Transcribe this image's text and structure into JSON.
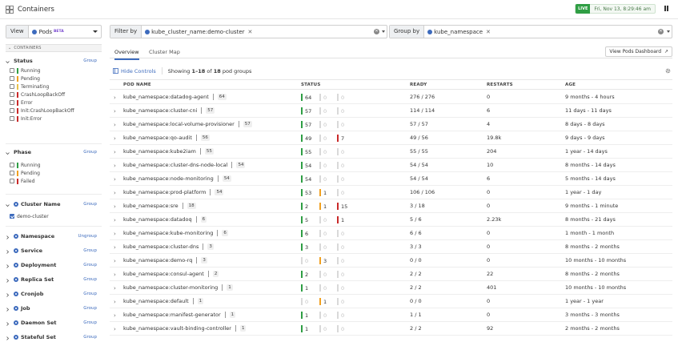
{
  "app": {
    "title": "Containers",
    "live_badge": "LIVE",
    "live_time": "Fri, Nov 13, 8:29:46 am"
  },
  "sidebar": {
    "view_label": "View",
    "view_value": "Pods",
    "view_beta": "BETA",
    "containers_header": "CONTAINERS",
    "facets": [
      {
        "title": "Status",
        "action": "Group",
        "expanded": true,
        "items": [
          {
            "label": "Running",
            "color": "#2f9e44",
            "checked": false
          },
          {
            "label": "Pending",
            "color": "#f0a020",
            "checked": false
          },
          {
            "label": "Terminating",
            "color": "#e8c24a",
            "checked": false
          },
          {
            "label": "CrashLoopBackOff",
            "color": "#c92a2a",
            "checked": false
          },
          {
            "label": "Error",
            "color": "#c92a2a",
            "checked": false
          },
          {
            "label": "Init:CrashLoopBackOff",
            "color": "#c92a2a",
            "checked": false
          },
          {
            "label": "Init:Error",
            "color": "#c92a2a",
            "checked": false
          }
        ]
      },
      {
        "title": "Phase",
        "action": "Group",
        "expanded": true,
        "items": [
          {
            "label": "Running",
            "color": "#2f9e44",
            "checked": false
          },
          {
            "label": "Pending",
            "color": "#f0a020",
            "checked": false
          },
          {
            "label": "Failed",
            "color": "#c92a2a",
            "checked": false
          }
        ]
      },
      {
        "title": "Cluster Name",
        "action": "Group",
        "expanded": true,
        "icon": "kubernetes-icon",
        "items": [
          {
            "label": "demo-cluster",
            "checked": true
          }
        ]
      },
      {
        "title": "Namespace",
        "action": "Ungroup",
        "expanded": false,
        "icon": "kubernetes-icon"
      },
      {
        "title": "Service",
        "action": "Group",
        "expanded": false,
        "icon": "kubernetes-icon"
      },
      {
        "title": "Deployment",
        "action": "Group",
        "expanded": false,
        "icon": "kubernetes-icon"
      },
      {
        "title": "Replica Set",
        "action": "Group",
        "expanded": false,
        "icon": "kubernetes-icon"
      },
      {
        "title": "Cronjob",
        "action": "Group",
        "expanded": false,
        "icon": "kubernetes-icon"
      },
      {
        "title": "Job",
        "action": "Group",
        "expanded": false,
        "icon": "kubernetes-icon"
      },
      {
        "title": "Daemon Set",
        "action": "Group",
        "expanded": false,
        "icon": "kubernetes-icon"
      },
      {
        "title": "Stateful Set",
        "action": "Group",
        "expanded": false,
        "icon": "kubernetes-icon"
      }
    ]
  },
  "filter": {
    "label": "Filter by",
    "chip": "kube_cluster_name:demo-cluster"
  },
  "group": {
    "label": "Group by",
    "chip": "kube_namespace"
  },
  "tabs": [
    {
      "label": "Overview",
      "active": true
    },
    {
      "label": "Cluster Map",
      "active": false
    }
  ],
  "dashboard_button": "View Pods Dashboard",
  "controls": {
    "hide_label": "Hide Controls",
    "showing_prefix": "Showing",
    "showing_range": "1–18",
    "showing_of": "of",
    "showing_total": "18",
    "showing_suffix": "pod groups"
  },
  "table": {
    "columns": [
      "POD NAME",
      "STATUS",
      "READY",
      "RESTARTS",
      "AGE"
    ],
    "status_colors": {
      "running": "#2f9e44",
      "pending": "#f0a020",
      "failed": "#c92a2a",
      "zero": "#d9d9d9"
    },
    "rows": [
      {
        "name": "kube_namespace:datadog-agent",
        "count": "64",
        "running": "64",
        "pending": "0",
        "failed": "0",
        "ready": "276 / 276",
        "restarts": "0",
        "age": "9 months - 4 hours"
      },
      {
        "name": "kube_namespace:cluster-cni",
        "count": "57",
        "running": "57",
        "pending": "0",
        "failed": "0",
        "ready": "114 / 114",
        "restarts": "6",
        "age": "11 days - 11 days"
      },
      {
        "name": "kube_namespace:local-volume-provisioner",
        "count": "57",
        "running": "57",
        "pending": "0",
        "failed": "0",
        "ready": "57 / 57",
        "restarts": "4",
        "age": "8 days - 8 days"
      },
      {
        "name": "kube_namespace:qo-audit",
        "count": "56",
        "running": "49",
        "pending": "0",
        "failed": "7",
        "ready": "49 / 56",
        "restarts": "19.8k",
        "age": "9 days - 9 days"
      },
      {
        "name": "kube_namespace:kube2iam",
        "count": "55",
        "running": "55",
        "pending": "0",
        "failed": "0",
        "ready": "55 / 55",
        "restarts": "204",
        "age": "1 year - 14 days"
      },
      {
        "name": "kube_namespace:cluster-dns-node-local",
        "count": "54",
        "running": "54",
        "pending": "0",
        "failed": "0",
        "ready": "54 / 54",
        "restarts": "10",
        "age": "8 months - 14 days"
      },
      {
        "name": "kube_namespace:node-monitoring",
        "count": "54",
        "running": "54",
        "pending": "0",
        "failed": "0",
        "ready": "54 / 54",
        "restarts": "6",
        "age": "5 months - 14 days"
      },
      {
        "name": "kube_namespace:prod-platform",
        "count": "54",
        "running": "53",
        "pending": "1",
        "failed": "0",
        "ready": "106 / 106",
        "restarts": "0",
        "age": "1 year - 1 day"
      },
      {
        "name": "kube_namespace:sre",
        "count": "18",
        "running": "2",
        "pending": "1",
        "failed": "15",
        "ready": "3 / 18",
        "restarts": "0",
        "age": "9 months - 1 minute"
      },
      {
        "name": "kube_namespace:datadoq",
        "count": "6",
        "running": "5",
        "pending": "0",
        "failed": "1",
        "ready": "5 / 6",
        "restarts": "2.23k",
        "age": "8 months - 21 days"
      },
      {
        "name": "kube_namespace:kube-monitoring",
        "count": "6",
        "running": "6",
        "pending": "0",
        "failed": "0",
        "ready": "6 / 6",
        "restarts": "0",
        "age": "1 month - 1 month"
      },
      {
        "name": "kube_namespace:cluster-dns",
        "count": "3",
        "running": "3",
        "pending": "0",
        "failed": "0",
        "ready": "3 / 3",
        "restarts": "0",
        "age": "8 months - 2 months"
      },
      {
        "name": "kube_namespace:demo-rq",
        "count": "3",
        "running": "0",
        "pending": "3",
        "failed": "0",
        "ready": "0 / 0",
        "restarts": "0",
        "age": "10 months - 10 months"
      },
      {
        "name": "kube_namespace:consul-agent",
        "count": "2",
        "running": "2",
        "pending": "0",
        "failed": "0",
        "ready": "2 / 2",
        "restarts": "22",
        "age": "8 months - 2 months"
      },
      {
        "name": "kube_namespace:cluster-monitoring",
        "count": "1",
        "running": "1",
        "pending": "0",
        "failed": "0",
        "ready": "2 / 2",
        "restarts": "401",
        "age": "10 months - 10 months"
      },
      {
        "name": "kube_namespace:default",
        "count": "1",
        "running": "0",
        "pending": "1",
        "failed": "0",
        "ready": "0 / 0",
        "restarts": "0",
        "age": "1 year - 1 year"
      },
      {
        "name": "kube_namespace:manifest-generator",
        "count": "1",
        "running": "1",
        "pending": "0",
        "failed": "0",
        "ready": "1 / 1",
        "restarts": "0",
        "age": "3 months - 3 months"
      },
      {
        "name": "kube_namespace:vault-binding-controller",
        "count": "1",
        "running": "1",
        "pending": "0",
        "failed": "0",
        "ready": "2 / 2",
        "restarts": "92",
        "age": "2 months - 2 months"
      }
    ]
  }
}
